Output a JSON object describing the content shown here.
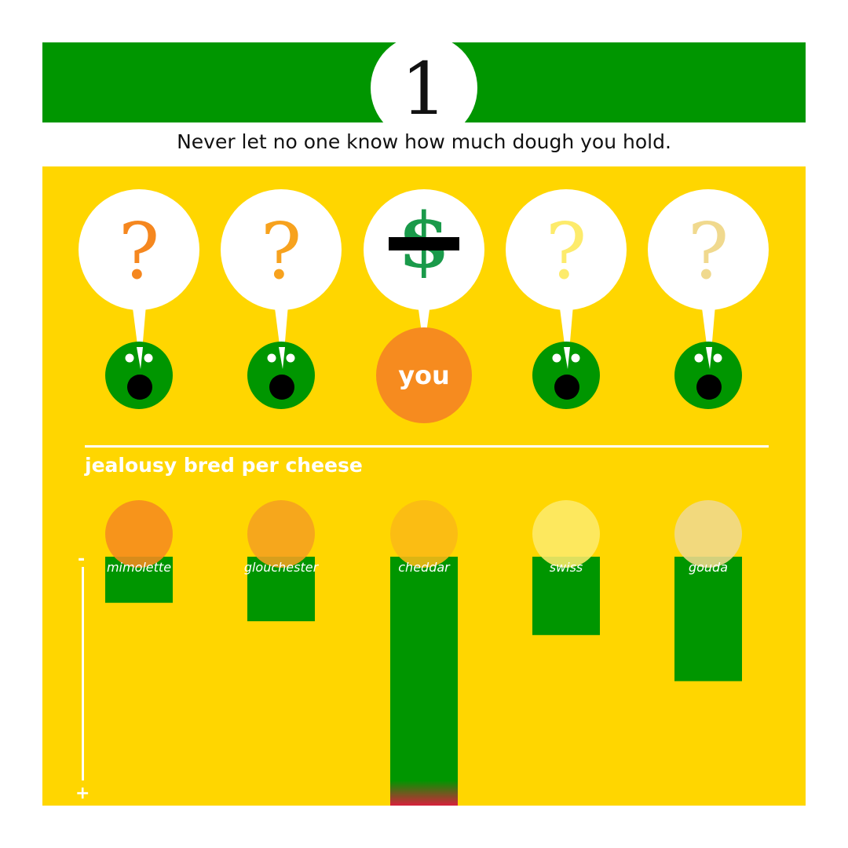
{
  "header": {
    "number": "1",
    "subtitle": "Never let no one know how much dough you hold."
  },
  "scene": {
    "you_label": "you",
    "bubble_symbols": [
      "?",
      "?",
      "$",
      "?",
      "?"
    ],
    "question_colors": [
      "#f5871f",
      "#f7a21e",
      "#1a9a4a",
      "#fdeb6b",
      "#f0d98e"
    ],
    "figure_color": "#009600",
    "you_color": "#f68b1f",
    "icons": [
      "question-mark-icon",
      "dollar-sign-icon",
      "censor-bar-icon",
      "face-icon"
    ]
  },
  "chart_data": {
    "type": "bar",
    "title": "jealousy bred per cheese",
    "categories": [
      "mimolette",
      "glouchester",
      "cheddar",
      "swiss",
      "gouda"
    ],
    "values": [
      5,
      7,
      27,
      8.5,
      13.5
    ],
    "ylim": [
      0,
      27
    ],
    "axis_min_label": "-",
    "axis_max_label": "+",
    "cheese_colors": [
      "#f68b1f",
      "#f5a020",
      "#fbba16",
      "#fdeb6b",
      "#f0d98e"
    ],
    "bar_color": "#009600",
    "grid": false
  }
}
